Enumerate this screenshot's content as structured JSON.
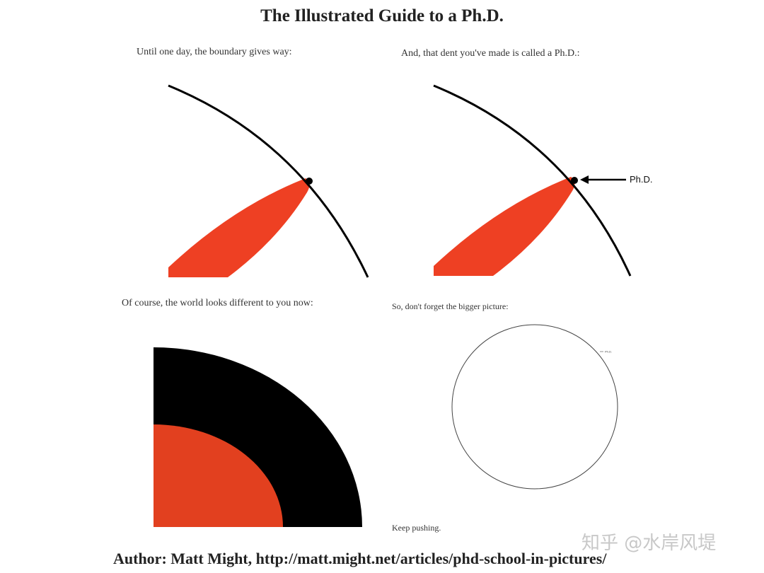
{
  "header": {
    "title": "The Illustrated Guide to a Ph.D."
  },
  "panels": [
    {
      "caption": "Until one day, the boundary gives way:"
    },
    {
      "caption": "And, that dent you've made is called a Ph.D.:",
      "annotation": "Ph.D."
    },
    {
      "caption": "Of course, the world looks different to you now:"
    },
    {
      "caption": "So, don't forget the bigger picture:",
      "annotation": "Ph.D.",
      "note": "Keep pushing."
    }
  ],
  "footer": {
    "credit": "Author: Matt Might, http://matt.might.net/articles/phd-school-in-pictures/",
    "watermark": "知乎 @水岸风堤"
  }
}
